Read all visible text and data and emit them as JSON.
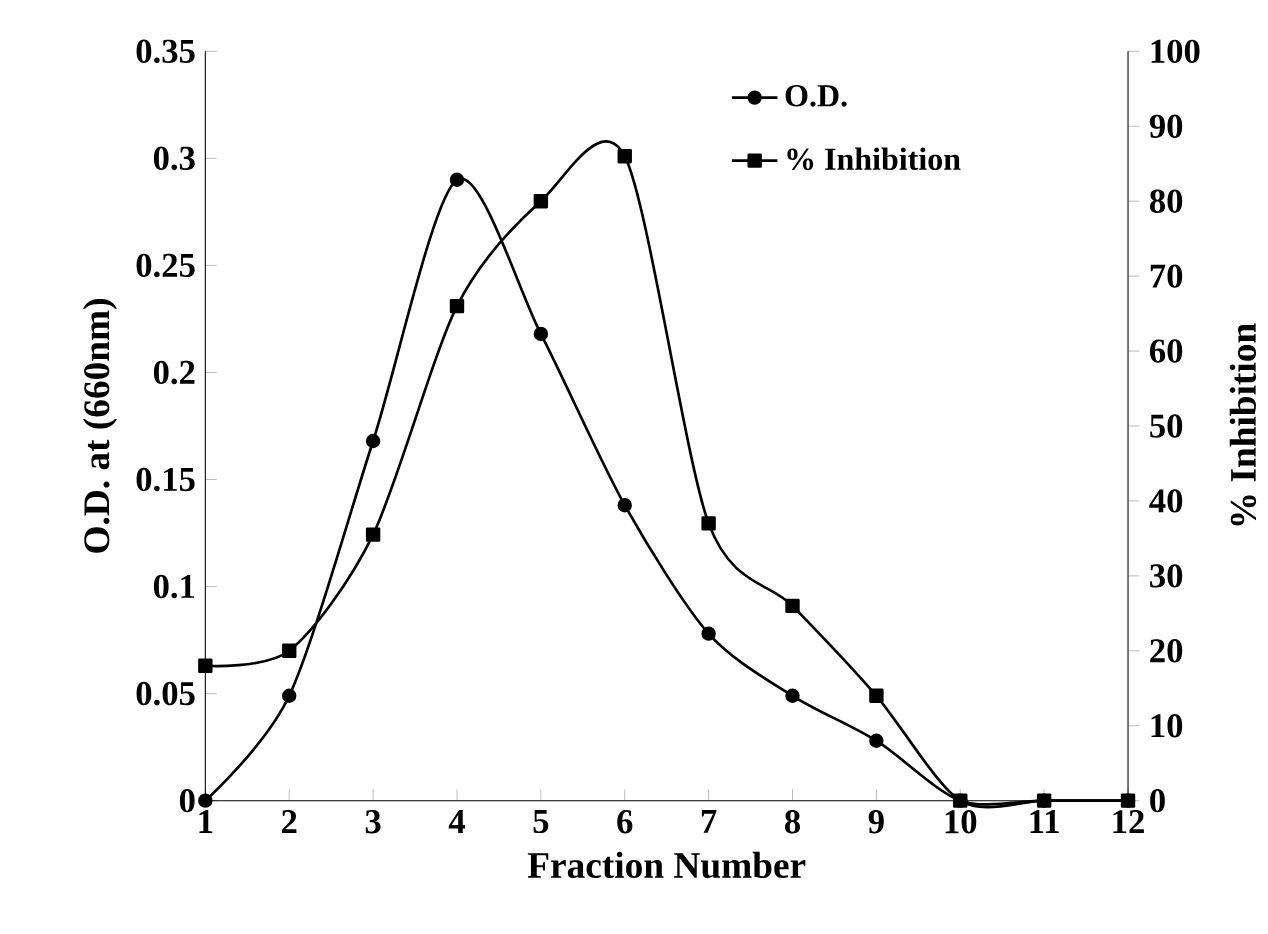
{
  "chart_data": {
    "type": "line",
    "xlabel": "Fraction Number",
    "ylabel": "O.D. at (660nm)",
    "y2label": "% Inhibition",
    "x": [
      1,
      2,
      3,
      4,
      5,
      6,
      7,
      8,
      9,
      10,
      11,
      12
    ],
    "xlim": [
      1,
      12
    ],
    "xticks": [
      1,
      2,
      3,
      4,
      5,
      6,
      7,
      8,
      9,
      10,
      11,
      12
    ],
    "ylim": [
      0,
      0.35
    ],
    "yticks": [
      0,
      0.05,
      0.1,
      0.15,
      0.2,
      0.25,
      0.3,
      0.35
    ],
    "y2lim": [
      0,
      100
    ],
    "y2ticks": [
      0,
      10,
      20,
      30,
      40,
      50,
      60,
      70,
      80,
      90,
      100
    ],
    "legend": "top right",
    "grid": false,
    "series": [
      {
        "name": "O.D.",
        "color": "#000000",
        "marker": "circle",
        "values": [
          0,
          0.049,
          0.168,
          0.29,
          0.218,
          0.138,
          0.078,
          0.049,
          0.028,
          0,
          0,
          0
        ]
      },
      {
        "name": "% Inhibition",
        "color": "#000000",
        "marker": "square",
        "axis": "y2",
        "values": [
          18,
          20,
          35.5,
          66,
          80,
          86,
          37,
          26,
          14,
          0,
          0,
          0
        ]
      }
    ]
  }
}
